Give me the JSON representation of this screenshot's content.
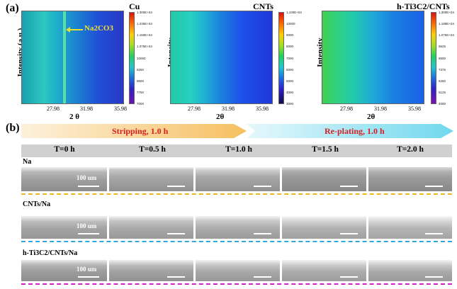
{
  "panel_a": {
    "label": "(a)",
    "plots": [
      {
        "title": "Cu",
        "ylabel": "Intensity (a.u.)",
        "xlabel": "2 θ",
        "xticks": [
          "27.98",
          "31.98",
          "35.98"
        ],
        "annotation": "Na2CO3",
        "colorbar_labels": [
          "1.300E+04",
          "1.225E+04",
          "1.150E+04",
          "1.075E+04",
          "10000",
          "9250",
          "8500",
          "7750",
          "7000"
        ]
      },
      {
        "title": "CNTs",
        "ylabel": "Intensity",
        "xlabel": "2θ",
        "xticks": [
          "27.98",
          "31.98",
          "35.98"
        ],
        "colorbar_labels": [
          "1.100E+04",
          "10000",
          "9000",
          "8000",
          "7000",
          "6000",
          "5000",
          "4000",
          "3000"
        ]
      },
      {
        "title": "h-Ti3C2/CNTs",
        "ylabel": "Intensity",
        "xlabel": "2θ",
        "xticks": [
          "27.98",
          "31.98",
          "35.98"
        ],
        "colorbar_labels": [
          "1.300E+04",
          "1.188E+04",
          "1.075E+04",
          "9625",
          "8500",
          "7375",
          "6250",
          "5125",
          "4000"
        ]
      }
    ]
  },
  "panel_b": {
    "label": "(b)",
    "stripping": "Stripping, 1.0 h",
    "replating": "Re-plating, 1.0 h",
    "times": [
      "T=0 h",
      "T=0.5 h",
      "T=1.0 h",
      "T=1.5 h",
      "T=2.0 h"
    ],
    "rows": [
      {
        "label": "Na",
        "dash_color": "#e8b820"
      },
      {
        "label": "CNTs/Na",
        "dash_color": "#2ea8e0"
      },
      {
        "label": "h-Ti3C2/CNTs/Na",
        "dash_color": "#d020c8"
      }
    ],
    "scale_label": "100 um"
  }
}
